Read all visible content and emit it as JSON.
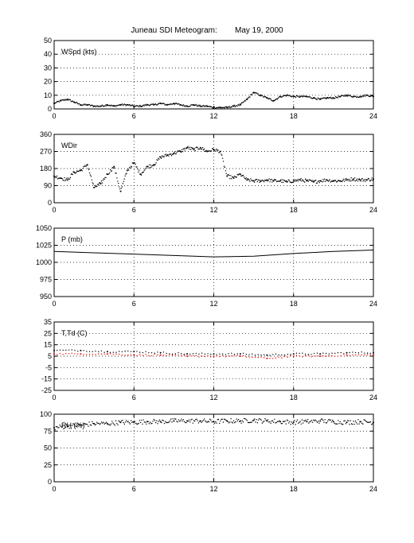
{
  "title": "Juneau SDI Meteogram:        May 19, 2000",
  "chart_data": [
    {
      "type": "scatter",
      "label": "WSpd (kts)",
      "ylim": [
        0,
        50
      ],
      "yticks": [
        0,
        10,
        20,
        30,
        40,
        50
      ],
      "xlim": [
        0,
        24
      ],
      "xticks": [
        0,
        6,
        12,
        18,
        24
      ],
      "grid": true,
      "series": [
        {
          "color": "#000000",
          "x": [
            0,
            0.5,
            1,
            1.5,
            2,
            2.5,
            3,
            3.5,
            4,
            4.5,
            5,
            5.5,
            6,
            6.5,
            7,
            7.5,
            8,
            8.5,
            9,
            9.5,
            10,
            10.5,
            11,
            11.5,
            12,
            12.5,
            13,
            13.5,
            14,
            14.5,
            15,
            15.5,
            16,
            16.5,
            17,
            17.5,
            18,
            18.5,
            19,
            19.5,
            20,
            20.5,
            21,
            21.5,
            22,
            22.5,
            23,
            23.5,
            24
          ],
          "y": [
            4,
            6,
            7,
            5,
            3,
            3,
            2,
            2,
            3,
            2,
            3,
            3,
            2,
            2,
            3,
            3,
            4,
            3,
            4,
            3,
            2,
            3,
            2,
            2,
            1,
            1,
            1,
            2,
            3,
            7,
            12,
            10,
            8,
            6,
            9,
            10,
            9,
            9,
            9,
            8,
            7,
            8,
            8,
            9,
            10,
            9,
            9,
            10,
            9
          ]
        }
      ]
    },
    {
      "type": "scatter",
      "label": "WDir",
      "ylim": [
        0,
        360
      ],
      "yticks": [
        0,
        90,
        180,
        270,
        360
      ],
      "xlim": [
        0,
        24
      ],
      "xticks": [
        0,
        6,
        12,
        18,
        24
      ],
      "grid": true,
      "series": [
        {
          "color": "#000000",
          "x": [
            0,
            0.5,
            1,
            1.5,
            2,
            2.5,
            3,
            3.5,
            4,
            4.5,
            5,
            5.5,
            6,
            6.5,
            7,
            7.5,
            8,
            8.5,
            9,
            9.5,
            10,
            10.5,
            11,
            11.5,
            12,
            12.5,
            13,
            13.5,
            14,
            14.5,
            15,
            15.5,
            16,
            16.5,
            17,
            17.5,
            18,
            18.5,
            19,
            19.5,
            20,
            20.5,
            21,
            21.5,
            22,
            22.5,
            23,
            23.5,
            24
          ],
          "y": [
            140,
            130,
            120,
            160,
            170,
            200,
            80,
            100,
            150,
            190,
            60,
            170,
            210,
            150,
            190,
            200,
            240,
            250,
            260,
            270,
            290,
            280,
            290,
            270,
            280,
            270,
            140,
            130,
            150,
            120,
            115,
            115,
            120,
            115,
            115,
            110,
            115,
            120,
            115,
            110,
            115,
            120,
            115,
            115,
            120,
            125,
            120,
            120,
            125
          ]
        }
      ]
    },
    {
      "type": "line",
      "label": "P (mb)",
      "ylim": [
        950,
        1050
      ],
      "yticks": [
        950,
        975,
        1000,
        1025,
        1050
      ],
      "xlim": [
        0,
        24
      ],
      "xticks": [
        0,
        6,
        12,
        18,
        24
      ],
      "grid": true,
      "series": [
        {
          "color": "#000000",
          "x": [
            0,
            3,
            6,
            9,
            12,
            15,
            18,
            21,
            24
          ],
          "y": [
            1016,
            1014,
            1012,
            1010,
            1008,
            1009,
            1013,
            1016,
            1018
          ]
        }
      ]
    },
    {
      "type": "scatter",
      "label": "T,Td (C)",
      "ylim": [
        -25,
        35
      ],
      "yticks": [
        -25,
        -15,
        -5,
        5,
        15,
        25,
        35
      ],
      "xlim": [
        0,
        24
      ],
      "xticks": [
        0,
        6,
        12,
        18,
        24
      ],
      "grid": true,
      "series": [
        {
          "color": "#000000",
          "x": [
            0,
            2,
            4,
            6,
            8,
            10,
            12,
            14,
            16,
            18,
            20,
            22,
            24
          ],
          "y": [
            10,
            10,
            9,
            9,
            8,
            7,
            7,
            7,
            6,
            7,
            7,
            8,
            8
          ]
        },
        {
          "color": "#ff0000",
          "x": [
            0,
            2,
            4,
            6,
            8,
            10,
            12,
            14,
            16,
            18,
            20,
            22,
            24
          ],
          "y": [
            7,
            7,
            7,
            6,
            6,
            5,
            5,
            5,
            3,
            5,
            5,
            6,
            6
          ]
        }
      ]
    },
    {
      "type": "scatter",
      "label": "RH (%)",
      "ylim": [
        0,
        100
      ],
      "yticks": [
        0,
        25,
        50,
        75,
        100
      ],
      "xlim": [
        0,
        24
      ],
      "xticks": [
        0,
        6,
        12,
        18,
        24
      ],
      "grid": true,
      "series": [
        {
          "color": "#000000",
          "x": [
            0,
            1,
            2,
            3,
            4,
            5,
            6,
            7,
            8,
            9,
            10,
            11,
            12,
            13,
            14,
            15,
            16,
            17,
            18,
            19,
            20,
            21,
            22,
            23,
            24
          ],
          "y": [
            80,
            82,
            84,
            86,
            86,
            88,
            88,
            89,
            89,
            90,
            90,
            90,
            89,
            90,
            90,
            91,
            90,
            89,
            88,
            89,
            90,
            89,
            88,
            89,
            88
          ]
        }
      ]
    }
  ]
}
